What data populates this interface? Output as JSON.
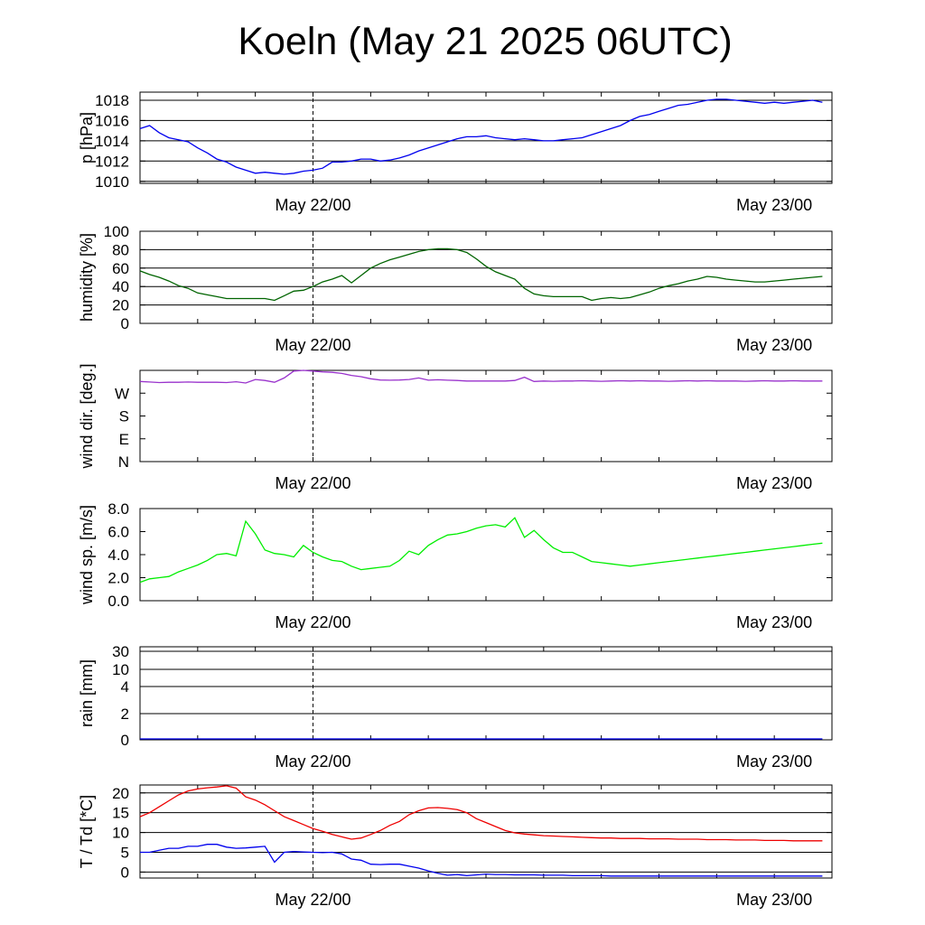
{
  "title": "Koeln (May 21 2025 06UTC)",
  "chart_data": [
    {
      "type": "line",
      "ylabel": "p [hPa]",
      "x_ticks": [
        "May 22/00",
        "May 23/00"
      ],
      "y_ticks": [
        "1010",
        "1012",
        "1014",
        "1016",
        "1018"
      ],
      "ylim": [
        1009.8,
        1018.8
      ],
      "grid": true,
      "color": "#0000ee",
      "series": [
        {
          "x": [
            6,
            7,
            8,
            9,
            10,
            11,
            12,
            13,
            14,
            15,
            16,
            17,
            18,
            19,
            20,
            21,
            22,
            23,
            24,
            25,
            26,
            27,
            28,
            29,
            30,
            31,
            32,
            33,
            34,
            35,
            36,
            37,
            38,
            39,
            40,
            41,
            42,
            43,
            44,
            45,
            46,
            47,
            48,
            49,
            50,
            51,
            52,
            53,
            54,
            55,
            56,
            57,
            58,
            59,
            60,
            61,
            62,
            63,
            64,
            65,
            66,
            67,
            68,
            69,
            70,
            71,
            72,
            73,
            74,
            75,
            76,
            77
          ],
          "values": [
            1015.2,
            1015.5,
            1014.8,
            1014.3,
            1014.1,
            1013.9,
            1013.3,
            1012.8,
            1012.2,
            1011.9,
            1011.4,
            1011.1,
            1010.8,
            1010.9,
            1010.8,
            1010.7,
            1010.8,
            1011.0,
            1011.1,
            1011.3,
            1011.9,
            1011.9,
            1012.0,
            1012.2,
            1012.2,
            1012.0,
            1012.1,
            1012.3,
            1012.6,
            1013.0,
            1013.3,
            1013.6,
            1013.9,
            1014.2,
            1014.4,
            1014.4,
            1014.5,
            1014.3,
            1014.2,
            1014.1,
            1014.2,
            1014.1,
            1014.0,
            1014.0,
            1014.1,
            1014.2,
            1014.3,
            1014.6,
            1014.9,
            1015.2,
            1015.5,
            1016.0,
            1016.4,
            1016.6,
            1016.9,
            1017.2,
            1017.5,
            1017.6,
            1017.8,
            1018.0,
            1018.1,
            1018.1,
            1018.0,
            1017.9,
            1017.8,
            1017.7,
            1017.8,
            1017.7,
            1017.8,
            1017.9,
            1018.0,
            1017.8
          ]
        }
      ]
    },
    {
      "type": "line",
      "ylabel": "humidity [%]",
      "x_ticks": [
        "May 22/00",
        "May 23/00"
      ],
      "y_ticks": [
        "0",
        "20",
        "40",
        "60",
        "80",
        "100"
      ],
      "ylim": [
        0,
        100
      ],
      "grid": true,
      "color": "#006400",
      "series": [
        {
          "x": [
            6,
            7,
            8,
            9,
            10,
            11,
            12,
            13,
            14,
            15,
            16,
            17,
            18,
            19,
            20,
            21,
            22,
            23,
            24,
            25,
            26,
            27,
            28,
            29,
            30,
            31,
            32,
            33,
            34,
            35,
            36,
            37,
            38,
            39,
            40,
            41,
            42,
            43,
            44,
            45,
            46,
            47,
            48,
            49,
            50,
            51,
            52,
            53,
            54,
            55,
            56,
            57,
            58,
            59,
            60,
            61,
            62,
            63,
            64,
            65,
            66,
            67,
            68,
            69,
            70,
            71,
            72,
            73,
            74,
            75,
            76,
            77
          ],
          "values": [
            57,
            53,
            50,
            46,
            41,
            38,
            33,
            31,
            29,
            27,
            27,
            27,
            27,
            27,
            25,
            30,
            35,
            36,
            40,
            45,
            48,
            52,
            44,
            52,
            60,
            65,
            69,
            72,
            75,
            78,
            80,
            81,
            81,
            80,
            77,
            70,
            62,
            56,
            52,
            48,
            38,
            32,
            30,
            29,
            29,
            29,
            29,
            25,
            27,
            28,
            27,
            28,
            31,
            34,
            38,
            41,
            43,
            46,
            48,
            51,
            50,
            48,
            47,
            46,
            45,
            45,
            46,
            47,
            48,
            49,
            50,
            51
          ]
        }
      ]
    },
    {
      "type": "line",
      "ylabel": "wind dir. [deg.]",
      "x_ticks": [
        "May 22/00",
        "May 23/00"
      ],
      "y_ticks": [
        "N",
        "E",
        "S",
        "W"
      ],
      "ylim": [
        0,
        360
      ],
      "grid": false,
      "color": "#9932cc",
      "series": [
        {
          "x": [
            6,
            7,
            8,
            9,
            10,
            11,
            12,
            13,
            14,
            15,
            16,
            17,
            18,
            19,
            20,
            21,
            22,
            23,
            24,
            25,
            26,
            27,
            28,
            29,
            30,
            31,
            32,
            33,
            34,
            35,
            36,
            37,
            38,
            39,
            40,
            41,
            42,
            43,
            44,
            45,
            46,
            47,
            48,
            49,
            50,
            51,
            52,
            53,
            54,
            55,
            56,
            57,
            58,
            59,
            60,
            61,
            62,
            63,
            64,
            65,
            66,
            67,
            68,
            69,
            70,
            71,
            72,
            73,
            74,
            75,
            76,
            77
          ],
          "values": [
            316,
            314,
            312,
            313,
            313,
            314,
            313,
            313,
            313,
            312,
            315,
            310,
            324,
            320,
            313,
            330,
            357,
            360,
            357,
            354,
            352,
            348,
            340,
            335,
            327,
            322,
            321,
            322,
            324,
            330,
            321,
            323,
            321,
            320,
            318,
            318,
            318,
            318,
            318,
            320,
            333,
            316,
            318,
            317,
            318,
            318,
            319,
            318,
            317,
            318,
            319,
            318,
            319,
            318,
            318,
            317,
            318,
            319,
            318,
            319,
            318,
            318,
            318,
            317,
            318,
            319,
            318,
            318,
            319,
            318,
            318,
            318
          ]
        }
      ]
    },
    {
      "type": "line",
      "ylabel": "wind sp. [m/s]",
      "x_ticks": [
        "May 22/00",
        "May 23/00"
      ],
      "y_ticks": [
        "0.0",
        "2.0",
        "4.0",
        "6.0",
        "8.0"
      ],
      "ylim": [
        0,
        8
      ],
      "grid": false,
      "color": "#00ee00",
      "series": [
        {
          "x": [
            6,
            7,
            8,
            9,
            10,
            11,
            12,
            13,
            14,
            15,
            16,
            17,
            18,
            19,
            20,
            21,
            22,
            23,
            24,
            25,
            26,
            27,
            28,
            29,
            30,
            31,
            32,
            33,
            34,
            35,
            36,
            37,
            38,
            39,
            40,
            41,
            42,
            43,
            44,
            45,
            46,
            47,
            48,
            49,
            50,
            51,
            52,
            53,
            54,
            55,
            56,
            57,
            58,
            59,
            60,
            61,
            62,
            63,
            64,
            65,
            66,
            67,
            68,
            69,
            70,
            71,
            72,
            73,
            74,
            75,
            76,
            77
          ],
          "values": [
            1.6,
            1.9,
            2.0,
            2.1,
            2.5,
            2.8,
            3.1,
            3.5,
            4.0,
            4.1,
            3.9,
            6.9,
            5.8,
            4.4,
            4.1,
            4.0,
            3.8,
            4.8,
            4.2,
            3.8,
            3.5,
            3.4,
            3.0,
            2.7,
            2.8,
            2.9,
            3.0,
            3.5,
            4.3,
            4.0,
            4.8,
            5.3,
            5.7,
            5.8,
            6.0,
            6.3,
            6.5,
            6.6,
            6.4,
            7.2,
            5.5,
            6.1,
            5.3,
            4.6,
            4.2,
            4.2,
            3.8,
            3.4,
            3.3,
            3.2,
            3.1,
            3.0,
            3.1,
            3.2,
            3.3,
            3.4,
            3.5,
            3.6,
            3.7,
            3.8,
            3.9,
            4.0,
            4.1,
            4.2,
            4.3,
            4.4,
            4.5,
            4.6,
            4.7,
            4.8,
            4.9,
            5.0
          ]
        }
      ]
    },
    {
      "type": "line",
      "ylabel": "rain [mm]",
      "x_ticks": [
        "May 22/00",
        "May 23/00"
      ],
      "y_ticks": [
        "0",
        "2",
        "4",
        "10",
        "30"
      ],
      "grid": true,
      "color": "#0000ee",
      "series": [
        {
          "x": [
            6,
            77
          ],
          "values": [
            0,
            0
          ]
        }
      ]
    },
    {
      "type": "line",
      "ylabel": "T / Td [*C]",
      "x_ticks": [
        "May 22/00",
        "May 23/00"
      ],
      "y_ticks": [
        "0",
        "5",
        "10",
        "15",
        "20"
      ],
      "ylim": [
        -1.5,
        22
      ],
      "grid": true,
      "series": [
        {
          "color": "#ee0000",
          "x": [
            6,
            7,
            8,
            9,
            10,
            11,
            12,
            13,
            14,
            15,
            16,
            17,
            18,
            19,
            20,
            21,
            22,
            23,
            24,
            25,
            26,
            27,
            28,
            29,
            30,
            31,
            32,
            33,
            34,
            35,
            36,
            37,
            38,
            39,
            40,
            41,
            42,
            43,
            44,
            45,
            46,
            47,
            48,
            49,
            50,
            51,
            52,
            53,
            54,
            55,
            56,
            57,
            58,
            59,
            60,
            61,
            62,
            63,
            64,
            65,
            66,
            67,
            68,
            69,
            70,
            71,
            72,
            73,
            74,
            75,
            76,
            77
          ],
          "values": [
            14,
            15,
            16.5,
            18,
            19.5,
            20.5,
            21,
            21.3,
            21.5,
            21.8,
            21.2,
            19,
            18.2,
            17,
            15.5,
            14,
            13,
            12,
            11,
            10.3,
            9.5,
            8.9,
            8.3,
            8.6,
            9.5,
            10.5,
            11.8,
            12.8,
            14.5,
            15.5,
            16.2,
            16.3,
            16.1,
            15.8,
            15.0,
            13.5,
            12.5,
            11.5,
            10.5,
            9.9,
            9.6,
            9.4,
            9.2,
            9.1,
            9.0,
            8.9,
            8.8,
            8.7,
            8.6,
            8.6,
            8.5,
            8.5,
            8.5,
            8.4,
            8.4,
            8.4,
            8.3,
            8.3,
            8.3,
            8.2,
            8.2,
            8.2,
            8.1,
            8.1,
            8.1,
            8.0,
            8.0,
            8.0,
            7.9,
            7.9,
            7.9,
            7.9
          ]
        },
        {
          "color": "#0000ee",
          "x": [
            6,
            7,
            8,
            9,
            10,
            11,
            12,
            13,
            14,
            15,
            16,
            17,
            18,
            19,
            20,
            21,
            22,
            23,
            24,
            25,
            26,
            27,
            28,
            29,
            30,
            31,
            32,
            33,
            34,
            35,
            36,
            37,
            38,
            39,
            40,
            41,
            42,
            43,
            44,
            45,
            46,
            47,
            48,
            49,
            50,
            51,
            52,
            53,
            54,
            55,
            56,
            57,
            58,
            59,
            60,
            61,
            62,
            63,
            64,
            65,
            66,
            67,
            68,
            69,
            70,
            71,
            72,
            73,
            74,
            75,
            76,
            77
          ],
          "values": [
            5,
            5,
            5.5,
            6,
            6,
            6.5,
            6.5,
            7,
            7,
            6.3,
            6.0,
            6.1,
            6.3,
            6.5,
            2.5,
            5.0,
            5.2,
            5.1,
            5.0,
            4.9,
            5.0,
            4.6,
            3.3,
            3.0,
            2.0,
            1.9,
            2.0,
            2.0,
            1.5,
            1.0,
            0.3,
            -0.3,
            -0.8,
            -0.6,
            -0.9,
            -0.7,
            -0.5,
            -0.6,
            -0.6,
            -0.7,
            -0.7,
            -0.7,
            -0.8,
            -0.8,
            -0.8,
            -0.9,
            -0.9,
            -0.9,
            -0.9,
            -1.0,
            -1.0,
            -1.0,
            -1.0,
            -1.0,
            -1.0,
            -1.0,
            -1.0,
            -1.0,
            -1.0,
            -1.0,
            -1.0,
            -1.0,
            -1.0,
            -1.0,
            -1.0,
            -1.0,
            -1.0,
            -1.0,
            -1.0,
            -1.0,
            -1.0,
            -1.0
          ]
        }
      ]
    }
  ]
}
